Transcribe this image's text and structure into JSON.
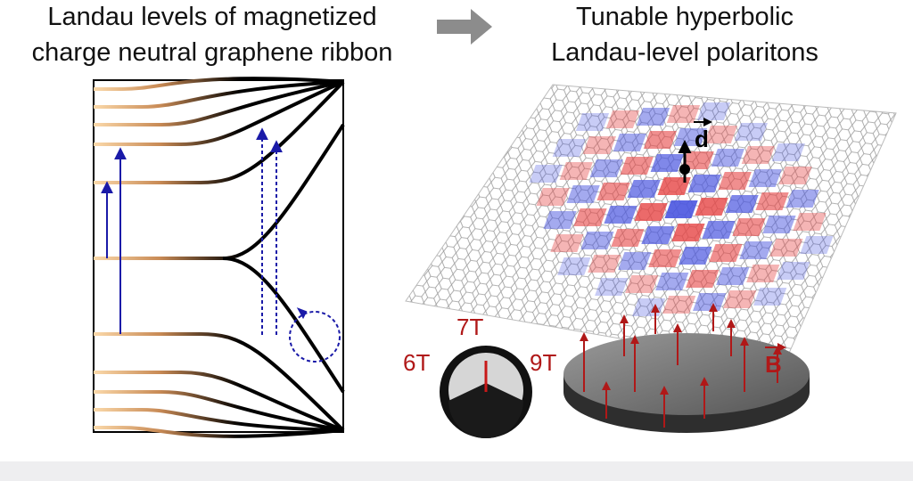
{
  "left_panel": {
    "title_lines": [
      "Landau levels of magnetized",
      "charge neutral graphene ribbon"
    ]
  },
  "right_panel": {
    "title_lines": [
      "Tunable hyperbolic",
      "Landau-level polaritons"
    ],
    "dipole_label": "d",
    "field_label": "B",
    "gauge_labels": [
      "6T",
      "7T",
      "9T"
    ]
  }
}
